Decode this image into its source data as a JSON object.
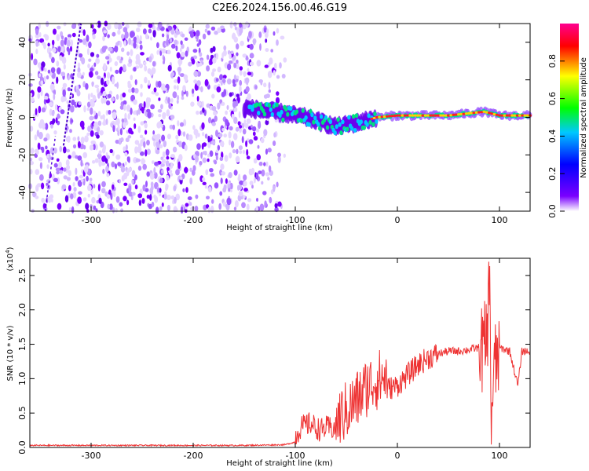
{
  "title": "C2E6.2024.156.00.46.G19",
  "chart_data": [
    {
      "type": "heatmap",
      "xlabel": "Height of straight line (km)",
      "ylabel": "Frequency (Hz)",
      "xlim": [
        -360,
        130
      ],
      "ylim": [
        -50,
        50
      ],
      "xticks": [
        -300,
        -200,
        -100,
        0,
        100
      ],
      "yticks": [
        40,
        20,
        0,
        -20,
        -40
      ],
      "colorbar": {
        "label": "Normalized spectral amplitude",
        "range": [
          0,
          1
        ],
        "ticks": [
          "0.0",
          "0.2",
          "0.4",
          "0.6",
          "0.8"
        ],
        "colors": [
          "#ffffff",
          "#7a00ff",
          "#0000ff",
          "#00c8ff",
          "#00ff00",
          "#ffff00",
          "#ff0000",
          "#ff0090"
        ]
      },
      "features": {
        "noise_region_x": [
          -360,
          -110
        ],
        "signal_start_x": -150,
        "signal_track": [
          {
            "x": -150,
            "y": 5
          },
          {
            "x": -120,
            "y": 3
          },
          {
            "x": -90,
            "y": 0
          },
          {
            "x": -60,
            "y": -5
          },
          {
            "x": -40,
            "y": -3
          },
          {
            "x": -20,
            "y": 0
          },
          {
            "x": 0,
            "y": 1
          },
          {
            "x": 50,
            "y": 1
          },
          {
            "x": 85,
            "y": 3
          },
          {
            "x": 100,
            "y": 1
          },
          {
            "x": 130,
            "y": 1
          }
        ]
      }
    },
    {
      "type": "line",
      "xlabel": "Height of straight line (km)",
      "ylabel": "SNR (10 * v/v)",
      "y_multiplier": "(x10^4)",
      "y_multiplier_base": "(x10",
      "y_multiplier_exp": "4",
      "y_multiplier_close": ")",
      "xlim": [
        -360,
        130
      ],
      "ylim": [
        0,
        2.75
      ],
      "xticks": [
        -300,
        -200,
        -100,
        0,
        100
      ],
      "yticks": [
        "0.0",
        "0.5",
        "1.0",
        "1.5",
        "2.0",
        "2.5"
      ],
      "line_color": "#ee3333",
      "series": [
        {
          "points": [
            [
              -360,
              0.03
            ],
            [
              -300,
              0.03
            ],
            [
              -250,
              0.03
            ],
            [
              -200,
              0.03
            ],
            [
              -150,
              0.03
            ],
            [
              -110,
              0.04
            ],
            [
              -100,
              0.08
            ],
            [
              -95,
              0.22
            ],
            [
              -90,
              0.25
            ],
            [
              -85,
              0.28
            ],
            [
              -80,
              0.22
            ],
            [
              -75,
              0.18
            ],
            [
              -70,
              0.22
            ],
            [
              -60,
              0.2
            ],
            [
              -50,
              0.35
            ],
            [
              -40,
              0.5
            ],
            [
              -30,
              0.7
            ],
            [
              -20,
              0.8
            ],
            [
              -10,
              0.85
            ],
            [
              0,
              0.9
            ],
            [
              10,
              1.05
            ],
            [
              20,
              1.2
            ],
            [
              30,
              1.3
            ],
            [
              40,
              1.36
            ],
            [
              50,
              1.4
            ],
            [
              60,
              1.4
            ],
            [
              70,
              1.42
            ],
            [
              80,
              1.45
            ],
            [
              85,
              1.4
            ],
            [
              88,
              1.6
            ],
            [
              90,
              2.65
            ],
            [
              92,
              0.5
            ],
            [
              95,
              1.1
            ],
            [
              100,
              1.45
            ],
            [
              110,
              1.4
            ],
            [
              118,
              0.9
            ],
            [
              122,
              1.4
            ],
            [
              130,
              1.4
            ]
          ],
          "spike_max": 2.7
        }
      ]
    }
  ]
}
